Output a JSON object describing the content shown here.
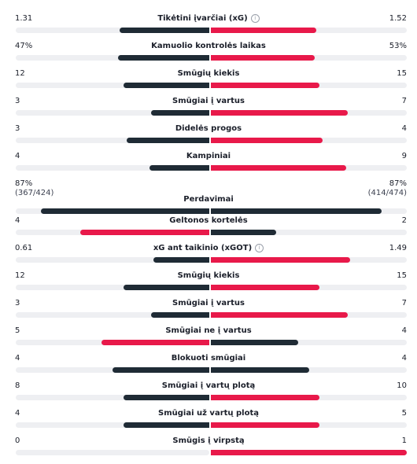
{
  "colors": {
    "dark": "#1f2b35",
    "red": "#e8194a",
    "track": "#eeeff2"
  },
  "stats": [
    {
      "label": "Tikėtini įvarčiai (xG)",
      "left": "1.31",
      "right": "1.52",
      "left_value": 1.31,
      "right_value": 1.52,
      "left_color": "dark",
      "right_color": "red",
      "info": true
    },
    {
      "label": "Kamuolio kontrolės laikas",
      "left": "47%",
      "right": "53%",
      "left_value": 47,
      "right_value": 53,
      "left_color": "dark",
      "right_color": "red",
      "info": false
    },
    {
      "label": "Smūgių kiekis",
      "left": "12",
      "right": "15",
      "left_value": 12,
      "right_value": 15,
      "left_color": "dark",
      "right_color": "red",
      "info": false
    },
    {
      "label": "Smūgiai į vartus",
      "left": "3",
      "right": "7",
      "left_value": 3,
      "right_value": 7,
      "left_color": "dark",
      "right_color": "red",
      "info": false
    },
    {
      "label": "Didelės progos",
      "left": "3",
      "right": "4",
      "left_value": 3,
      "right_value": 4,
      "left_color": "dark",
      "right_color": "red",
      "info": false
    },
    {
      "label": "Kampiniai",
      "left": "4",
      "right": "9",
      "left_value": 4,
      "right_value": 9,
      "left_color": "dark",
      "right_color": "red",
      "info": false
    },
    {
      "label": "Perdavimai",
      "left": "87%",
      "left_sub": "(367/424)",
      "right": "87%",
      "right_sub": "(414/474)",
      "left_value": 87,
      "right_value": 87,
      "left_color": "dark",
      "right_color": "dark",
      "info": false
    },
    {
      "label": "Geltonos kortelės",
      "left": "4",
      "right": "2",
      "left_value": 4,
      "right_value": 2,
      "left_color": "red",
      "right_color": "dark",
      "info": false
    },
    {
      "label": "xG ant taikinio (xGOT)",
      "left": "0.61",
      "right": "1.49",
      "left_value": 0.61,
      "right_value": 1.49,
      "left_color": "dark",
      "right_color": "red",
      "info": true
    },
    {
      "label": "Smūgių kiekis",
      "left": "12",
      "right": "15",
      "left_value": 12,
      "right_value": 15,
      "left_color": "dark",
      "right_color": "red",
      "info": false
    },
    {
      "label": "Smūgiai į vartus",
      "left": "3",
      "right": "7",
      "left_value": 3,
      "right_value": 7,
      "left_color": "dark",
      "right_color": "red",
      "info": false
    },
    {
      "label": "Smūgiai ne į vartus",
      "left": "5",
      "right": "4",
      "left_value": 5,
      "right_value": 4,
      "left_color": "red",
      "right_color": "dark",
      "info": false
    },
    {
      "label": "Blokuoti smūgiai",
      "left": "4",
      "right": "4",
      "left_value": 4,
      "right_value": 4,
      "left_color": "dark",
      "right_color": "dark",
      "info": false
    },
    {
      "label": "Smūgiai į vartų plotą",
      "left": "8",
      "right": "10",
      "left_value": 8,
      "right_value": 10,
      "left_color": "dark",
      "right_color": "red",
      "info": false
    },
    {
      "label": "Smūgiai už vartų plotą",
      "left": "4",
      "right": "5",
      "left_value": 4,
      "right_value": 5,
      "left_color": "dark",
      "right_color": "red",
      "info": false
    },
    {
      "label": "Smūgis į virpstą",
      "left": "0",
      "right": "1",
      "left_value": 0,
      "right_value": 1,
      "left_color": "dark",
      "right_color": "red",
      "info": false
    }
  ]
}
